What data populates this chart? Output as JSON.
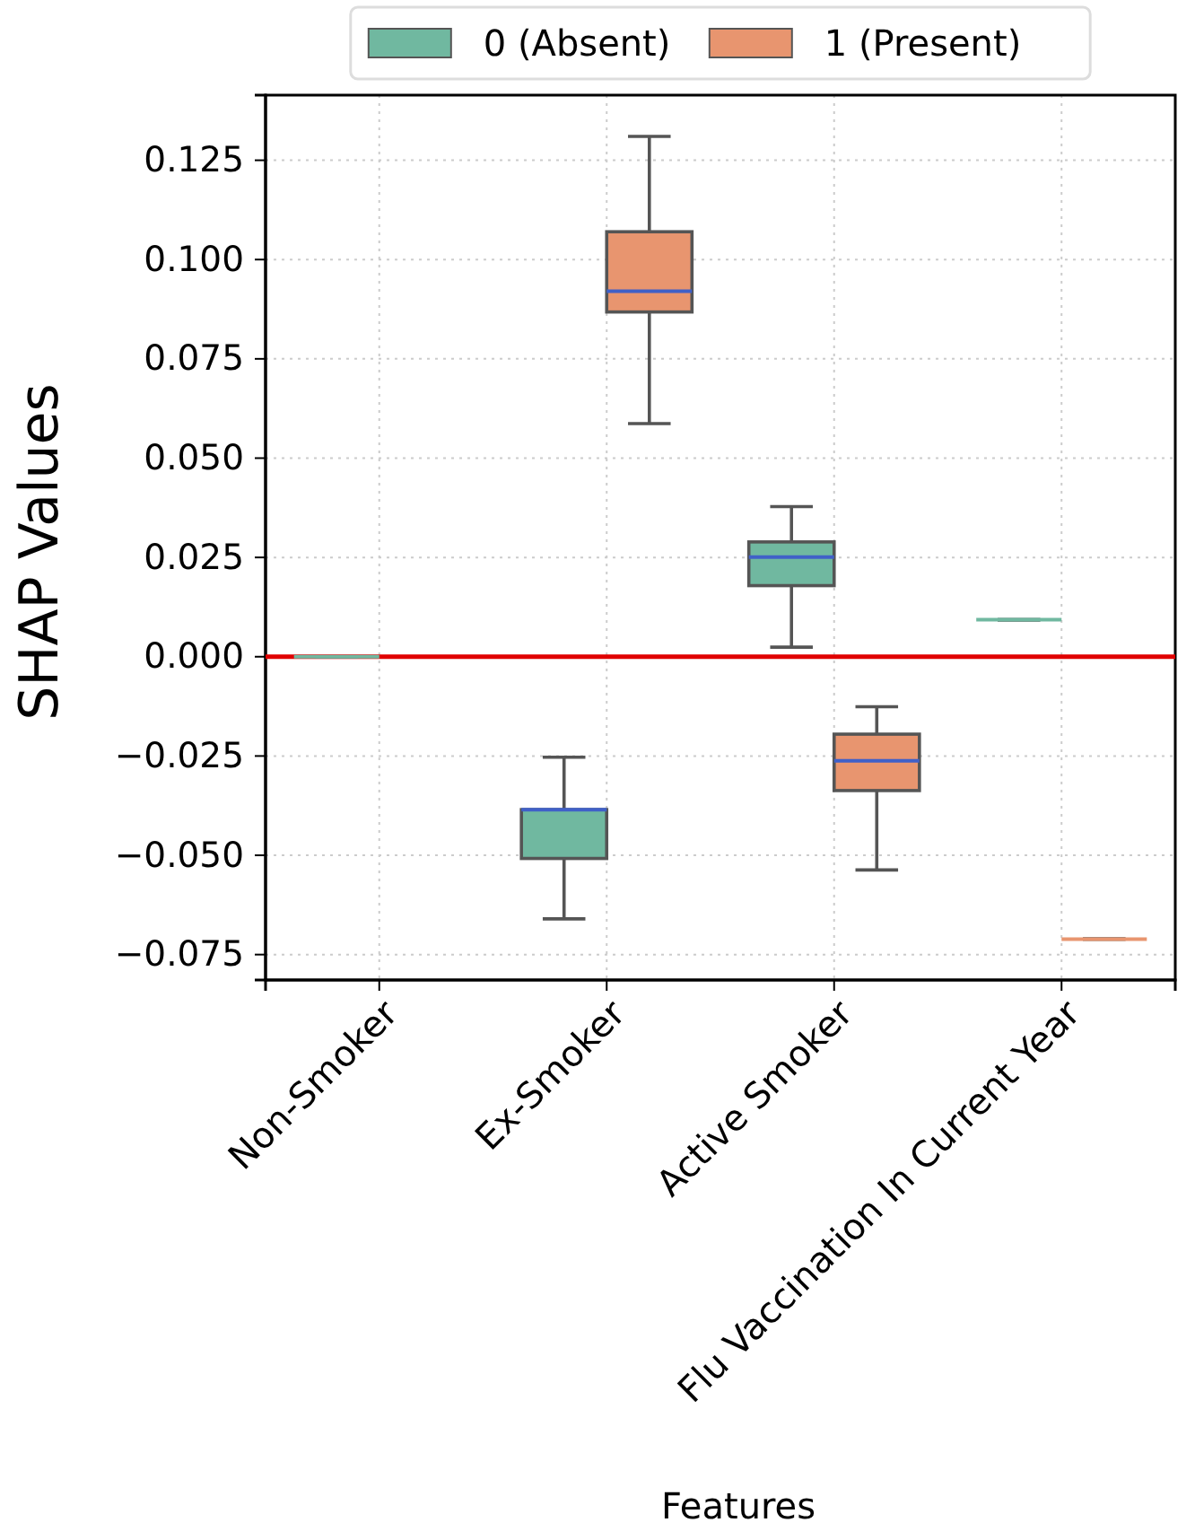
{
  "chart_data": {
    "type": "box",
    "xlabel": "Features",
    "ylabel": "SHAP Values",
    "categories": [
      "Non-Smoker",
      "Ex-Smoker",
      "Active Smoker",
      "Flu Vaccination In Current Year"
    ],
    "series": [
      {
        "name": "0 (Absent)",
        "color": "#70b8a0",
        "boxes": [
          {
            "low": 0,
            "q1": 0,
            "median": 0,
            "q3": 0,
            "high": 0
          },
          {
            "low": -0.066,
            "q1": -0.0508,
            "median": -0.0385,
            "q3": -0.0385,
            "high": -0.0253
          },
          {
            "low": 0.0024,
            "q1": 0.0179,
            "median": 0.0251,
            "q3": 0.0289,
            "high": 0.0378
          },
          {
            "low": 0.0093,
            "q1": 0.0093,
            "median": 0.0093,
            "q3": 0.0093,
            "high": 0.0093
          }
        ]
      },
      {
        "name": "1 (Present)",
        "color": "#e8956f",
        "boxes": [
          null,
          {
            "low": 0.0587,
            "q1": 0.0868,
            "median": 0.092,
            "q3": 0.107,
            "high": 0.131
          },
          {
            "low": -0.0537,
            "q1": -0.0337,
            "median": -0.0262,
            "q3": -0.0195,
            "high": -0.0126
          },
          {
            "low": -0.0711,
            "q1": -0.0711,
            "median": -0.0711,
            "q3": -0.0711,
            "high": -0.0711
          }
        ]
      }
    ],
    "ylim": [
      -0.0814,
      0.1414
    ],
    "yticks": [
      {
        "value": -0.075,
        "label": "−0.075"
      },
      {
        "value": -0.05,
        "label": "−0.050"
      },
      {
        "value": -0.025,
        "label": "−0.025"
      },
      {
        "value": 0,
        "label": "0.000"
      },
      {
        "value": 0.025,
        "label": "0.025"
      },
      {
        "value": 0.05,
        "label": "0.050"
      },
      {
        "value": 0.075,
        "label": "0.075"
      },
      {
        "value": 0.1,
        "label": "0.100"
      },
      {
        "value": 0.125,
        "label": "0.125"
      }
    ],
    "ref_lines": [
      {
        "axis": "y",
        "value": 0,
        "color": "#e00000"
      }
    ],
    "grid": true,
    "legend": "top"
  }
}
